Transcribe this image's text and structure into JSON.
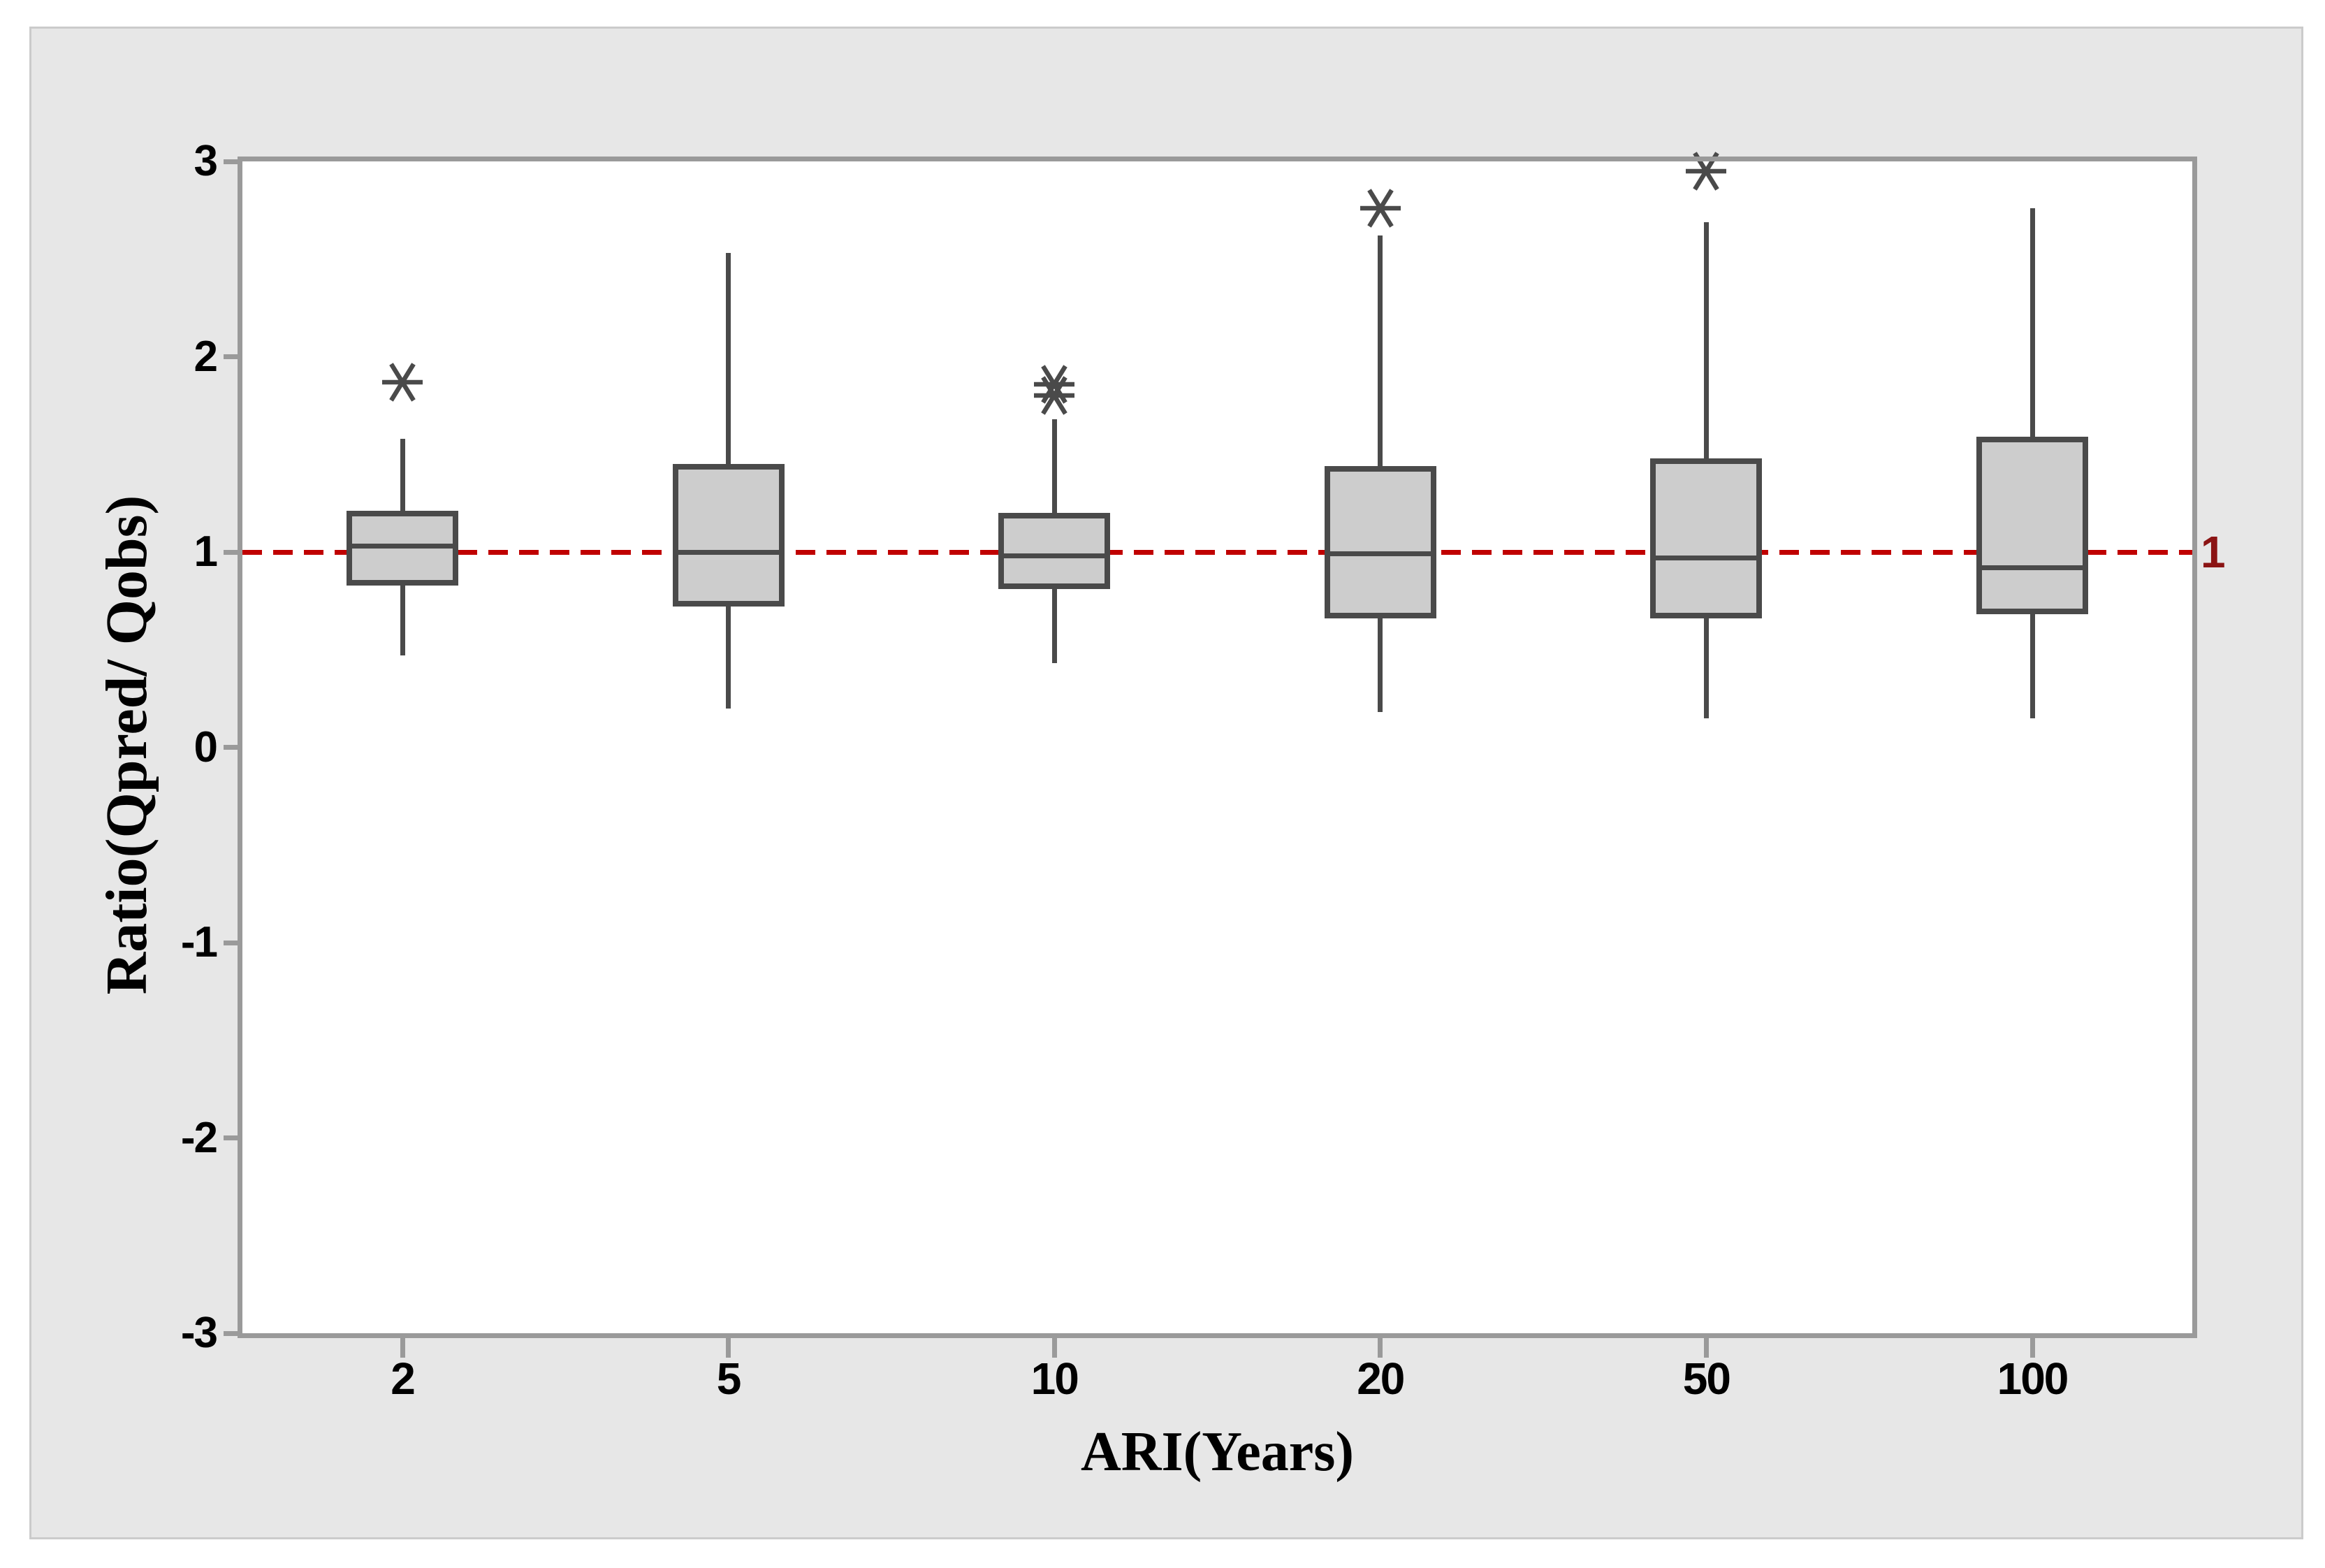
{
  "chart_data": {
    "type": "boxplot",
    "xlabel": "ARI(Years)",
    "ylabel": "Ratio(Qpred/ Qobs)",
    "categories": [
      "2",
      "5",
      "10",
      "20",
      "50",
      "100"
    ],
    "ylim": [
      -3,
      3
    ],
    "yticks": [
      "3",
      "2",
      "1",
      "0",
      "-1",
      "-2",
      "-3"
    ],
    "ytick_values": [
      3,
      2,
      1,
      0,
      -1,
      -2,
      -3
    ],
    "grid": "off",
    "legend": "none",
    "reference_line": {
      "value": 1,
      "label": "1",
      "style": "dashed"
    },
    "series": [
      {
        "category": "2",
        "whisker_low": 0.47,
        "q1": 0.83,
        "median": 1.03,
        "q3": 1.21,
        "whisker_high": 1.58,
        "outliers": [
          1.87
        ]
      },
      {
        "category": "5",
        "whisker_low": 0.2,
        "q1": 0.72,
        "median": 1.0,
        "q3": 1.45,
        "whisker_high": 2.53,
        "outliers": []
      },
      {
        "category": "10",
        "whisker_low": 0.43,
        "q1": 0.81,
        "median": 0.98,
        "q3": 1.2,
        "whisker_high": 1.68,
        "outliers": [
          1.8,
          1.86
        ]
      },
      {
        "category": "20",
        "whisker_low": 0.18,
        "q1": 0.66,
        "median": 0.99,
        "q3": 1.44,
        "whisker_high": 2.62,
        "outliers": [
          2.76
        ]
      },
      {
        "category": "50",
        "whisker_low": 0.15,
        "q1": 0.66,
        "median": 0.97,
        "q3": 1.48,
        "whisker_high": 2.69,
        "outliers": [
          2.95
        ]
      },
      {
        "category": "100",
        "whisker_low": 0.15,
        "q1": 0.68,
        "median": 0.92,
        "q3": 1.59,
        "whisker_high": 2.76,
        "outliers": []
      }
    ],
    "colors": {
      "panel_bg": "#e7e7e7",
      "plot_bg": "#ffffff",
      "axis": "#9a9a9a",
      "box_fill": "#cdcdcd",
      "box_stroke": "#4a4a4a",
      "ref_line": "#c00000",
      "ref_label": "#8b1414",
      "tick_label": "#000000"
    }
  }
}
